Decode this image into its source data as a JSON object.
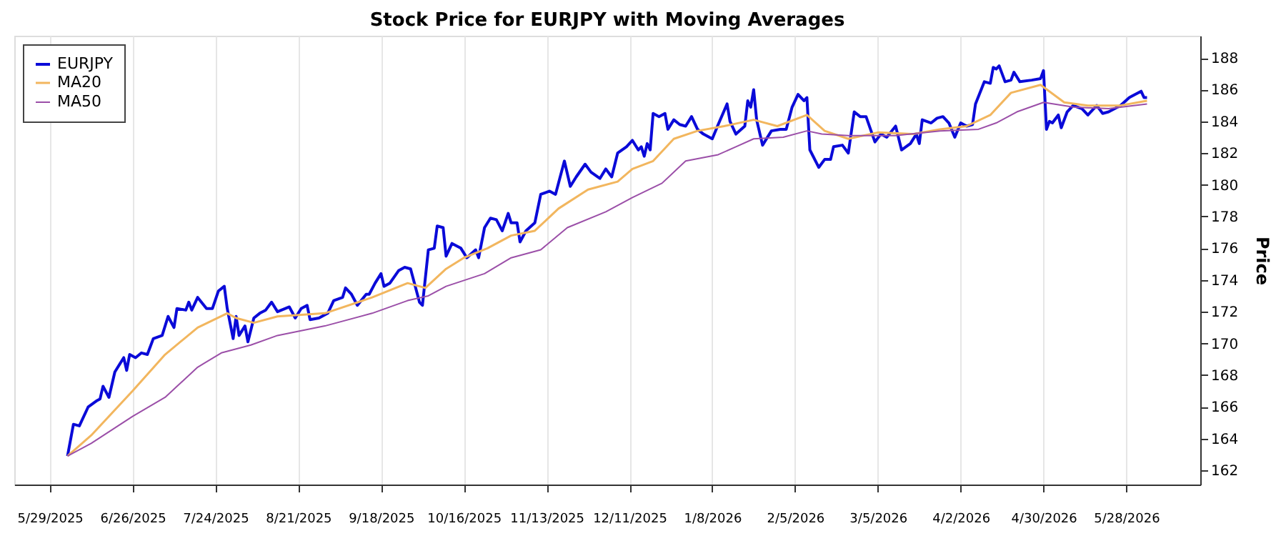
{
  "chart_data": {
    "type": "line",
    "title": "Stock Price for EURJPY with Moving Averages",
    "ylabel": "Price",
    "xlim": [
      "2025-05-17",
      "2026-06-22"
    ],
    "ylim": [
      161.1,
      189.4
    ],
    "xticks": [
      {
        "value": "2025-05-29",
        "label": "5/29/2025"
      },
      {
        "value": "2025-06-26",
        "label": "6/26/2025"
      },
      {
        "value": "2025-07-24",
        "label": "7/24/2025"
      },
      {
        "value": "2025-08-21",
        "label": "8/21/2025"
      },
      {
        "value": "2025-09-18",
        "label": "9/18/2025"
      },
      {
        "value": "2025-10-16",
        "label": "10/16/2025"
      },
      {
        "value": "2025-11-13",
        "label": "11/13/2025"
      },
      {
        "value": "2025-12-11",
        "label": "12/11/2025"
      },
      {
        "value": "2026-01-08",
        "label": "1/8/2026"
      },
      {
        "value": "2026-02-05",
        "label": "2/5/2026"
      },
      {
        "value": "2026-03-05",
        "label": "3/5/2026"
      },
      {
        "value": "2026-04-02",
        "label": "4/2/2026"
      },
      {
        "value": "2026-04-30",
        "label": "4/30/2026"
      },
      {
        "value": "2026-05-28",
        "label": "5/28/2026"
      }
    ],
    "yticks": [
      162,
      164,
      166,
      168,
      170,
      172,
      174,
      176,
      178,
      180,
      182,
      184,
      186,
      188
    ],
    "grid": "x",
    "legend": "top left",
    "marker": "none",
    "line_style": "solid",
    "series": [
      {
        "name": "EURJPY",
        "color": "#0a0ad8",
        "x": [
          "2025-06-04",
          "2025-06-06",
          "2025-06-08",
          "2025-06-11",
          "2025-06-14",
          "2025-06-15",
          "2025-06-16",
          "2025-06-18",
          "2025-06-20",
          "2025-06-23",
          "2025-06-24",
          "2025-06-25",
          "2025-06-27",
          "2025-06-29",
          "2025-07-01",
          "2025-07-03",
          "2025-07-06",
          "2025-07-08",
          "2025-07-10",
          "2025-07-11",
          "2025-07-14",
          "2025-07-15",
          "2025-07-16",
          "2025-07-18",
          "2025-07-21",
          "2025-07-23",
          "2025-07-25",
          "2025-07-27",
          "2025-07-28",
          "2025-07-30",
          "2025-07-31",
          "2025-08-01",
          "2025-08-03",
          "2025-08-04",
          "2025-08-06",
          "2025-08-08",
          "2025-08-10",
          "2025-08-12",
          "2025-08-14",
          "2025-08-18",
          "2025-08-20",
          "2025-08-22",
          "2025-08-24",
          "2025-08-25",
          "2025-08-28",
          "2025-08-31",
          "2025-09-02",
          "2025-09-05",
          "2025-09-06",
          "2025-09-08",
          "2025-09-10",
          "2025-09-13",
          "2025-09-14",
          "2025-09-16",
          "2025-09-18",
          "2025-09-19",
          "2025-09-21",
          "2025-09-24",
          "2025-09-26",
          "2025-09-28",
          "2025-10-01",
          "2025-10-02",
          "2025-10-04",
          "2025-10-06",
          "2025-10-07",
          "2025-10-09",
          "2025-10-10",
          "2025-10-12",
          "2025-10-15",
          "2025-10-17",
          "2025-10-20",
          "2025-10-21",
          "2025-10-23",
          "2025-10-25",
          "2025-10-27",
          "2025-10-29",
          "2025-10-31",
          "2025-11-01",
          "2025-11-03",
          "2025-11-04",
          "2025-11-06",
          "2025-11-09",
          "2025-11-11",
          "2025-11-14",
          "2025-11-16",
          "2025-11-19",
          "2025-11-21",
          "2025-11-23",
          "2025-11-26",
          "2025-11-28",
          "2025-12-01",
          "2025-12-03",
          "2025-12-05",
          "2025-12-07",
          "2025-12-10",
          "2025-12-12",
          "2025-12-14",
          "2025-12-15",
          "2025-12-16",
          "2025-12-17",
          "2025-12-18",
          "2025-12-19",
          "2025-12-21",
          "2025-12-23",
          "2025-12-24",
          "2025-12-26",
          "2025-12-28",
          "2025-12-30",
          "2026-01-01",
          "2026-01-03",
          "2026-01-05",
          "2026-01-08",
          "2026-01-10",
          "2026-01-13",
          "2026-01-14",
          "2026-01-16",
          "2026-01-19",
          "2026-01-20",
          "2026-01-21",
          "2026-01-22",
          "2026-01-23",
          "2026-01-25",
          "2026-01-28",
          "2026-01-31",
          "2026-02-02",
          "2026-02-04",
          "2026-02-06",
          "2026-02-08",
          "2026-02-09",
          "2026-02-10",
          "2026-02-13",
          "2026-02-15",
          "2026-02-17",
          "2026-02-18",
          "2026-02-21",
          "2026-02-23",
          "2026-02-25",
          "2026-02-27",
          "2026-03-01",
          "2026-03-04",
          "2026-03-06",
          "2026-03-08",
          "2026-03-11",
          "2026-03-13",
          "2026-03-16",
          "2026-03-18",
          "2026-03-19",
          "2026-03-20",
          "2026-03-23",
          "2026-03-25",
          "2026-03-27",
          "2026-03-29",
          "2026-03-31",
          "2026-04-02",
          "2026-04-04",
          "2026-04-06",
          "2026-04-07",
          "2026-04-10",
          "2026-04-12",
          "2026-04-13",
          "2026-04-14",
          "2026-04-15",
          "2026-04-17",
          "2026-04-19",
          "2026-04-20",
          "2026-04-22",
          "2026-04-26",
          "2026-04-29",
          "2026-04-30",
          "2026-05-01",
          "2026-05-02",
          "2026-05-03",
          "2026-05-05",
          "2026-05-06",
          "2026-05-08",
          "2026-05-10",
          "2026-05-13",
          "2026-05-15",
          "2026-05-18",
          "2026-05-20",
          "2026-05-22",
          "2026-05-26",
          "2026-05-29",
          "2026-05-30",
          "2026-06-02",
          "2026-06-03",
          "2026-06-04"
        ],
        "values": [
          162.9,
          164.9,
          164.8,
          166.0,
          166.4,
          166.5,
          167.3,
          166.6,
          168.2,
          169.1,
          168.3,
          169.3,
          169.1,
          169.4,
          169.3,
          170.3,
          170.5,
          171.7,
          171.0,
          172.2,
          172.1,
          172.6,
          172.1,
          172.9,
          172.2,
          172.2,
          173.3,
          173.6,
          172.2,
          170.3,
          171.7,
          170.5,
          171.1,
          170.1,
          171.6,
          171.9,
          172.1,
          172.6,
          172.0,
          172.3,
          171.6,
          172.2,
          172.4,
          171.5,
          171.6,
          171.9,
          172.7,
          172.9,
          173.5,
          173.1,
          172.4,
          173.1,
          173.1,
          173.8,
          174.4,
          173.6,
          173.8,
          174.6,
          174.8,
          174.7,
          172.6,
          172.4,
          175.9,
          176.0,
          177.4,
          177.3,
          175.5,
          176.3,
          176.0,
          175.4,
          175.9,
          175.4,
          177.3,
          177.9,
          177.8,
          177.1,
          178.2,
          177.6,
          177.6,
          176.4,
          177.1,
          177.6,
          179.4,
          179.6,
          179.4,
          181.5,
          179.9,
          180.5,
          181.3,
          180.8,
          180.4,
          181.0,
          180.5,
          182.0,
          182.4,
          182.8,
          182.2,
          182.4,
          181.8,
          182.6,
          182.2,
          184.5,
          184.3,
          184.5,
          183.5,
          184.1,
          183.8,
          183.7,
          184.3,
          183.5,
          183.2,
          182.9,
          183.8,
          185.1,
          184.0,
          183.2,
          183.7,
          185.3,
          184.9,
          186.0,
          184.1,
          182.5,
          183.4,
          183.5,
          183.5,
          184.9,
          185.7,
          185.3,
          185.5,
          182.2,
          181.1,
          181.6,
          181.6,
          182.4,
          182.5,
          182.0,
          184.6,
          184.3,
          184.3,
          182.7,
          183.2,
          183.0,
          183.7,
          182.2,
          182.6,
          183.2,
          182.6,
          184.1,
          183.9,
          184.2,
          184.3,
          183.9,
          183.0,
          183.9,
          183.7,
          183.8,
          185.1,
          186.5,
          186.4,
          187.4,
          187.3,
          187.5,
          186.5,
          186.6,
          187.1,
          186.5,
          186.6,
          186.7,
          187.2,
          183.5,
          184.0,
          183.9,
          184.4,
          183.6,
          184.6,
          185.0,
          184.8,
          184.4,
          185.0,
          184.5,
          184.6,
          185.0,
          185.5,
          185.6,
          185.9,
          185.5,
          185.5
        ]
      },
      {
        "name": "MA20",
        "color": "#f2b65e",
        "x": [
          "2025-06-04",
          "2025-06-12",
          "2025-06-26",
          "2025-07-07",
          "2025-07-18",
          "2025-07-28",
          "2025-07-31",
          "2025-08-06",
          "2025-08-14",
          "2025-08-30",
          "2025-09-15",
          "2025-09-27",
          "2025-10-03",
          "2025-10-10",
          "2025-10-16",
          "2025-10-24",
          "2025-11-01",
          "2025-11-09",
          "2025-11-17",
          "2025-11-27",
          "2025-12-07",
          "2025-12-12",
          "2025-12-19",
          "2025-12-26",
          "2026-01-03",
          "2026-01-12",
          "2026-01-22",
          "2026-01-30",
          "2026-02-09",
          "2026-02-15",
          "2026-02-23",
          "2026-03-05",
          "2026-03-17",
          "2026-03-26",
          "2026-04-04",
          "2026-04-12",
          "2026-04-19",
          "2026-04-29",
          "2026-05-07",
          "2026-05-15",
          "2026-05-26",
          "2026-06-04"
        ],
        "values": [
          162.9,
          164.2,
          167.0,
          169.3,
          171.0,
          171.9,
          171.6,
          171.3,
          171.7,
          171.9,
          172.9,
          173.8,
          173.5,
          174.7,
          175.4,
          176.0,
          176.8,
          177.1,
          178.5,
          179.7,
          180.2,
          181.0,
          181.5,
          182.9,
          183.4,
          183.7,
          184.1,
          183.7,
          184.4,
          183.4,
          182.9,
          183.3,
          183.2,
          183.5,
          183.7,
          184.4,
          185.8,
          186.3,
          185.2,
          185.0,
          185.0,
          185.3
        ]
      },
      {
        "name": "MA50",
        "color": "#9b4fa8",
        "x": [
          "2025-06-04",
          "2025-06-12",
          "2025-06-26",
          "2025-07-07",
          "2025-07-18",
          "2025-07-26",
          "2025-08-05",
          "2025-08-14",
          "2025-08-30",
          "2025-09-15",
          "2025-09-27",
          "2025-10-04",
          "2025-10-10",
          "2025-10-23",
          "2025-11-01",
          "2025-11-11",
          "2025-11-20",
          "2025-12-03",
          "2025-12-12",
          "2025-12-22",
          "2025-12-30",
          "2026-01-10",
          "2026-01-16",
          "2026-01-22",
          "2026-02-01",
          "2026-02-09",
          "2026-02-14",
          "2026-02-23",
          "2026-03-11",
          "2026-03-26",
          "2026-04-08",
          "2026-04-14",
          "2026-04-21",
          "2026-04-30",
          "2026-05-10",
          "2026-05-22",
          "2026-06-04"
        ],
        "values": [
          162.9,
          163.7,
          165.4,
          166.6,
          168.5,
          169.4,
          169.9,
          170.5,
          171.1,
          171.9,
          172.7,
          173.0,
          173.6,
          174.4,
          175.4,
          175.9,
          177.3,
          178.3,
          179.2,
          180.1,
          181.5,
          181.9,
          182.4,
          182.9,
          183.0,
          183.4,
          183.2,
          183.1,
          183.1,
          183.4,
          183.5,
          183.9,
          184.6,
          185.2,
          184.9,
          184.8,
          185.1
        ]
      }
    ]
  }
}
